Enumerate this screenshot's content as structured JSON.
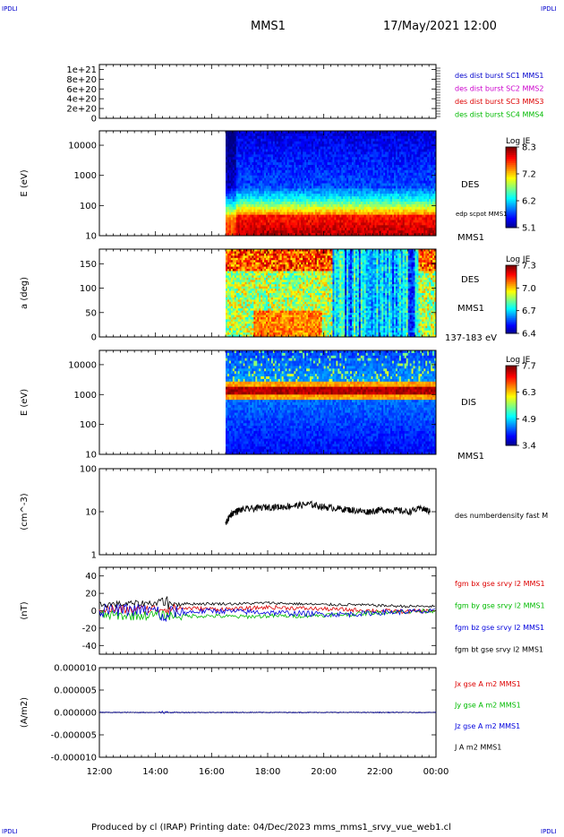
{
  "corner_label": "IPDLI",
  "header": {
    "spacecraft": "MMS1",
    "datetime": "17/May/2021 12:00"
  },
  "footer": {
    "text": "Produced by cl (IRAP)   Printing date: 04/Dec/2023   mms_mms1_srvy_vue_web1.cl"
  },
  "colors": {
    "red": "#dd0000",
    "green": "#00bb00",
    "blue": "#0000dd",
    "magenta": "#cc00cc",
    "black": "#000000"
  },
  "chart_data": [
    {
      "type": "line",
      "panel": "burst",
      "ylabel": "",
      "ylim": [
        0,
        1.1e+21
      ],
      "y_tick_labels": [
        "1e+21",
        "8e+20",
        "6e+20",
        "4e+20",
        "2e+20",
        "0"
      ],
      "y_tick_values": [
        1e+21,
        8e+20,
        6e+20,
        4e+20,
        2e+20,
        0
      ],
      "series": [
        {
          "name": "des dist burst SC1 MMS1",
          "color": "#0000cc"
        },
        {
          "name": "des dist burst SC2 MMS2",
          "color": "#cc00cc"
        },
        {
          "name": "des dist burst SC3 MMS3",
          "color": "#dd0000"
        },
        {
          "name": "des dist burst SC4 MMS4",
          "color": "#00bb00"
        }
      ]
    },
    {
      "type": "heatmap",
      "panel": "des-energy",
      "ylabel": "E (eV)",
      "y_scale": "log",
      "ylim": [
        10,
        30000
      ],
      "y_tick_labels": [
        "10000",
        "1000",
        "100",
        "10"
      ],
      "y_tick_values": [
        10000,
        1000,
        100,
        10
      ],
      "data_start_hour": 16.5,
      "colorbar": {
        "title": "Log JE",
        "tick_labels": [
          "8.3",
          "7.2",
          "6.2",
          "5.1"
        ],
        "range": [
          5.1,
          8.3
        ]
      },
      "labels": [
        "DES",
        "edp scpot MMS1",
        "MMS1"
      ]
    },
    {
      "type": "heatmap",
      "panel": "des-pitch",
      "ylabel": "a (deg)",
      "ylim": [
        0,
        180
      ],
      "y_tick_labels": [
        "150",
        "100",
        "50",
        "0"
      ],
      "y_tick_values": [
        150,
        100,
        50,
        0
      ],
      "data_start_hour": 16.5,
      "colorbar": {
        "title": "Log JE",
        "tick_labels": [
          "7.3",
          "7.0",
          "6.7",
          "6.4"
        ],
        "range": [
          6.4,
          7.3
        ]
      },
      "labels": [
        "DES",
        "MMS1",
        "137-183 eV"
      ]
    },
    {
      "type": "heatmap",
      "panel": "dis-energy",
      "ylabel": "E (eV)",
      "y_scale": "log",
      "ylim": [
        10,
        30000
      ],
      "y_tick_labels": [
        "10000",
        "1000",
        "100",
        "10"
      ],
      "y_tick_values": [
        10000,
        1000,
        100,
        10
      ],
      "data_start_hour": 16.5,
      "colorbar": {
        "title": "Log JE",
        "tick_labels": [
          "7.7",
          "6.3",
          "4.9",
          "3.4"
        ],
        "range": [
          3.4,
          7.7
        ]
      },
      "labels": [
        "DIS",
        "MMS1"
      ]
    },
    {
      "type": "line",
      "panel": "density",
      "ylabel": "(cm^-3)",
      "y_scale": "log",
      "ylim": [
        1,
        100
      ],
      "y_tick_labels": [
        "100",
        "10",
        "1"
      ],
      "y_tick_values": [
        100,
        10,
        1
      ],
      "series": [
        {
          "name": "des numberdensity fast M",
          "color": "#000000",
          "x_hours": [
            16.5,
            16.7,
            17.0,
            17.5,
            18.0,
            18.5,
            19.0,
            19.5,
            20.0,
            20.5,
            21.0,
            21.5,
            22.0,
            22.5,
            23.0,
            23.5,
            23.8
          ],
          "values": [
            5,
            9,
            11,
            12,
            13,
            13,
            14,
            15,
            13,
            12,
            11,
            10,
            11,
            11,
            10,
            12,
            10
          ]
        }
      ]
    },
    {
      "type": "line",
      "panel": "magnetic-field",
      "ylabel": "(nT)",
      "ylim": [
        -50,
        50
      ],
      "y_tick_labels": [
        "40",
        "20",
        "0",
        "-20",
        "-40"
      ],
      "y_tick_values": [
        40,
        20,
        0,
        -20,
        -40
      ],
      "series": [
        {
          "name": "fgm bx gse srvy l2 MMS1",
          "color": "#dd0000",
          "x_hours": [
            12,
            13,
            14,
            15,
            16,
            17,
            18,
            19,
            20,
            21,
            22,
            23,
            24
          ],
          "values": [
            2,
            1,
            2,
            3,
            2,
            2,
            4,
            3,
            2,
            1,
            0,
            -1,
            0
          ]
        },
        {
          "name": "fgm by gse srvy l2 MMS1",
          "color": "#00bb00",
          "x_hours": [
            12,
            13,
            14,
            15,
            16,
            17,
            18,
            19,
            20,
            21,
            22,
            23,
            24
          ],
          "values": [
            -5,
            -6,
            -5,
            -6,
            -6,
            -7,
            -6,
            -6,
            -5,
            -4,
            -2,
            -1,
            0
          ]
        },
        {
          "name": "fgm bz gse srvy l2 MMS1",
          "color": "#0000dd",
          "x_hours": [
            12,
            13,
            14,
            15,
            16,
            17,
            18,
            19,
            20,
            21,
            22,
            23,
            24
          ],
          "values": [
            0,
            1,
            0,
            -2,
            0,
            -1,
            -2,
            -3,
            -4,
            -4,
            -2,
            -1,
            -1
          ]
        },
        {
          "name": "fgm bt gse srvy l2 MMS1",
          "color": "#000000",
          "x_hours": [
            12,
            13,
            14,
            15,
            16,
            17,
            18,
            19,
            20,
            21,
            22,
            23,
            24
          ],
          "values": [
            7,
            8,
            9,
            8,
            8,
            8,
            9,
            8,
            7,
            7,
            6,
            5,
            5
          ]
        }
      ]
    },
    {
      "type": "line",
      "panel": "current-density",
      "ylabel": "(A/m2)",
      "ylim": [
        -1e-05,
        1e-05
      ],
      "y_tick_labels": [
        "0.000010",
        "0.000005",
        "0.000000",
        "-0.000005",
        "-0.000010"
      ],
      "y_tick_values": [
        1e-05,
        5e-06,
        0,
        -5e-06,
        -1e-05
      ],
      "series": [
        {
          "name": "Jx gse A m2 MMS1",
          "color": "#dd0000"
        },
        {
          "name": "Jy gse A m2 MMS1",
          "color": "#00bb00"
        },
        {
          "name": "Jz gse A m2 MMS1",
          "color": "#0000dd"
        },
        {
          "name": "J A m2 MMS1",
          "color": "#000000"
        }
      ]
    }
  ],
  "x_axis": {
    "tick_labels": [
      "12:00",
      "14:00",
      "16:00",
      "18:00",
      "20:00",
      "22:00",
      "00:00"
    ],
    "tick_hours": [
      12,
      14,
      16,
      18,
      20,
      22,
      24
    ],
    "range_hours": [
      12,
      24
    ]
  }
}
